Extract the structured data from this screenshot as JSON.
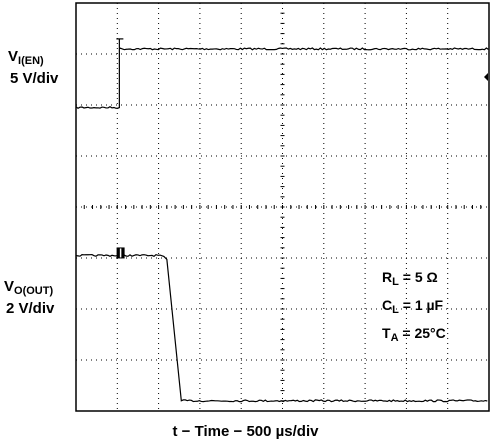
{
  "chart_data": {
    "type": "line",
    "title": "",
    "xlabel": "t − Time − 500 µs/div",
    "x_divisions": 10,
    "y_divisions": 8,
    "grid": true,
    "channels": {
      "en": {
        "name_main": "V",
        "name_sub": "I(EN)",
        "scale": "5 V/div",
        "low_div": 5.95,
        "high_div": 7.1,
        "step_time_div": 1.05
      },
      "out": {
        "name_main": "V",
        "name_sub": "O(OUT)",
        "scale": "2 V/div",
        "high_div": 3.05,
        "low_div": 0.2,
        "fall_start_div": 2.2,
        "fall_end_div": 2.55
      }
    },
    "conditions": [
      {
        "main": "R",
        "sub": "L",
        "rest": " = 5 Ω"
      },
      {
        "main": "C",
        "sub": "L",
        "rest": " = 1 µF"
      },
      {
        "main": "T",
        "sub": "A",
        "rest": " = 25°C"
      }
    ]
  }
}
